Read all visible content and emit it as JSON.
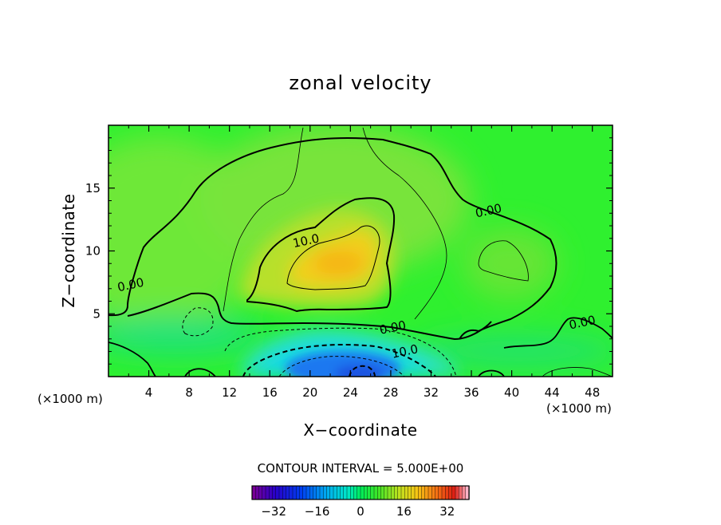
{
  "chart_data": {
    "type": "heatmap",
    "title": "zonal velocity",
    "xlabel": "X−coordinate",
    "ylabel": "Z−coordinate",
    "x_units": "(×1000 m)",
    "y_units": "(×1000 m)",
    "xlim": [
      0,
      50
    ],
    "ylim": [
      0,
      20
    ],
    "x_ticks": [
      4,
      8,
      12,
      16,
      20,
      24,
      28,
      32,
      36,
      40,
      44,
      48
    ],
    "y_ticks": [
      5,
      10,
      15
    ],
    "x_tick_labels": [
      "4",
      "8",
      "12",
      "16",
      "20",
      "24",
      "28",
      "32",
      "36",
      "40",
      "44",
      "48"
    ],
    "y_tick_labels": [
      "5",
      "10",
      "15"
    ],
    "contour_interval_text": "CONTOUR INTERVAL = 5.000E+00",
    "contour_interval": 5.0,
    "contour_labels": [
      {
        "text": "0.00",
        "x": 2.2,
        "y": 7.3
      },
      {
        "text": "10.0",
        "x": 19.6,
        "y": 10.8
      },
      {
        "text": "0.00",
        "x": 37.7,
        "y": 13.2
      },
      {
        "text": "0.00",
        "x": 28.2,
        "y": 3.9
      },
      {
        "text": "10.0",
        "x": 29.4,
        "y": 2.0
      },
      {
        "text": "0.00",
        "x": 47.0,
        "y": 4.3
      }
    ],
    "colorbar": {
      "range": [
        -40,
        40
      ],
      "ticks": [
        -32,
        -16,
        0,
        16,
        32
      ],
      "tick_labels": [
        "−32",
        "−16",
        "0",
        "16",
        "32"
      ]
    },
    "features": [
      {
        "kind": "positive_max",
        "x": 23,
        "y": 9,
        "value": 20
      },
      {
        "kind": "negative_min",
        "x": 23,
        "y": 0.5,
        "value": -20
      }
    ],
    "grid": false
  }
}
